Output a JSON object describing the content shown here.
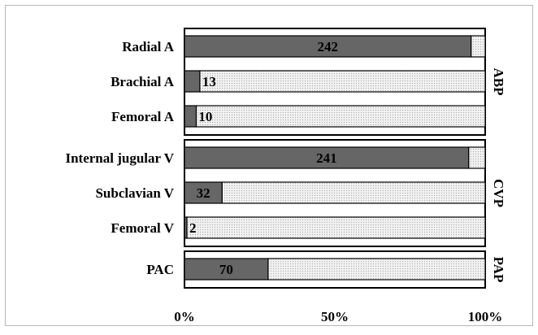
{
  "chart_data": {
    "type": "bar",
    "stacked": true,
    "orientation": "horizontal",
    "title": "",
    "xlabel": "",
    "ylabel": "",
    "xlim": [
      0,
      100
    ],
    "x_ticks": [
      "0%",
      "50%",
      "100%"
    ],
    "grid": false,
    "legend": "none",
    "colors": {
      "filled": "#666666",
      "remainder": "#e6e6e6",
      "outline": "#000000"
    },
    "groups": [
      {
        "name": "ABP",
        "bars": [
          {
            "category": "Radial A",
            "value": 95.3,
            "label": "242"
          },
          {
            "category": "Brachial A",
            "value": 5.1,
            "label": "13"
          },
          {
            "category": "Femoral A",
            "value": 3.9,
            "label": "10"
          }
        ]
      },
      {
        "name": "CVP",
        "bars": [
          {
            "category": "Internal jugular V",
            "value": 94.5,
            "label": "241"
          },
          {
            "category": "Subclavian V",
            "value": 12.5,
            "label": "32"
          },
          {
            "category": "Femoral V",
            "value": 0.8,
            "label": "2"
          }
        ]
      },
      {
        "name": "PAP",
        "bars": [
          {
            "category": "PAC",
            "value": 27.8,
            "label": "70"
          }
        ]
      }
    ]
  }
}
